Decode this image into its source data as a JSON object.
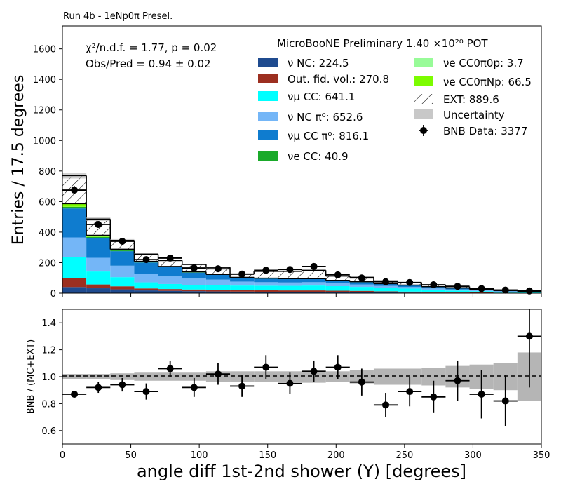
{
  "run_label": "Run 4b - 1eNp0π Presel.",
  "stats": {
    "chi2_label": "χ²/n.d.f. = 1.77, p = 0.02",
    "obs_pred_label": "Obs/Pred = 0.94 ± 0.02"
  },
  "experiment_label": "MicroBooNE Preliminary 1.40 ×10²⁰ POT",
  "chart_data": [
    {
      "type": "stacked-histogram",
      "ylabel": "Entries / 17.5 degrees",
      "xlim": [
        0,
        350
      ],
      "ylim": [
        0,
        1750
      ],
      "x_ticks": [
        "0",
        "50",
        "100",
        "150",
        "200",
        "250",
        "300",
        "350"
      ],
      "y_ticks": [
        "0",
        "200",
        "400",
        "600",
        "800",
        "1000",
        "1200",
        "1400",
        "1600"
      ],
      "y_tick_values": [
        0,
        200,
        400,
        600,
        800,
        1000,
        1200,
        1400,
        1600
      ],
      "bin_edges": [
        0,
        17.5,
        35,
        52.5,
        70,
        87.5,
        105,
        122.5,
        140,
        157.5,
        175,
        192.5,
        210,
        227.5,
        245,
        262.5,
        280,
        297.5,
        315,
        332.5,
        350
      ],
      "series": [
        {
          "name": "ν NC: 224.5",
          "color": "#1f4b8f",
          "values": [
            40,
            32,
            25,
            18,
            15,
            13,
            11,
            10,
            9,
            9,
            9,
            8,
            7,
            5,
            4,
            3,
            3,
            2,
            1,
            1
          ]
        },
        {
          "name": "Out. fid. vol.: 270.8",
          "color": "#9c2f20",
          "values": [
            60,
            25,
            20,
            13,
            12,
            11,
            11,
            10,
            10,
            9,
            9,
            8,
            8,
            7,
            6,
            5,
            4,
            3,
            2,
            1
          ]
        },
        {
          "name": "νμ CC: 641.1",
          "color": "#00ffff",
          "values": [
            135,
            85,
            60,
            40,
            33,
            30,
            30,
            30,
            30,
            30,
            32,
            30,
            26,
            23,
            20,
            14,
            10,
            8,
            6,
            4
          ]
        },
        {
          "name": "ν NC π⁰: 652.6",
          "color": "#74b6f7",
          "values": [
            130,
            90,
            75,
            55,
            50,
            42,
            37,
            26,
            23,
            22,
            22,
            18,
            16,
            13,
            10,
            9,
            7,
            5,
            3,
            2
          ]
        },
        {
          "name": "νμ CC π⁰: 816.1",
          "color": "#0f7ccf",
          "values": [
            190,
            130,
            95,
            75,
            60,
            39,
            31,
            24,
            23,
            22,
            20,
            17,
            15,
            12,
            11,
            10,
            8,
            6,
            4,
            3
          ]
        },
        {
          "name": "νe CC: 40.9",
          "color": "#1aaa2a",
          "values": [
            10,
            6,
            5,
            3,
            2,
            2,
            1,
            1,
            1,
            1,
            1,
            1,
            1,
            1,
            1,
            1,
            1,
            1,
            1,
            1
          ]
        },
        {
          "name": "νe CC0π0p: 3.7",
          "color": "#98fb98",
          "values": [
            1,
            1,
            0.5,
            0.3,
            0.2,
            0.1,
            0.1,
            0.1,
            0.1,
            0.1,
            0.1,
            0.1,
            0.1,
            0.1,
            0.1,
            0.1,
            0.1,
            0,
            0,
            0
          ]
        },
        {
          "name": "νe CC0πNp: 66.5",
          "color": "#7cfc00",
          "values": [
            20,
            10,
            7,
            4,
            3,
            3,
            2,
            2,
            2,
            2,
            2,
            2,
            2,
            1.5,
            1,
            1,
            1,
            1,
            0.5,
            0.5
          ]
        },
        {
          "name": "EXT: 889.6",
          "color": "hatch",
          "values": [
            184,
            106,
            58,
            47,
            39,
            48,
            46,
            21,
            45,
            48,
            55,
            28,
            29,
            18,
            17,
            11,
            9,
            7,
            4,
            3
          ]
        }
      ],
      "uncertainty_label": "Uncertainty",
      "data": {
        "name": "BNB Data: 3377",
        "x": [
          8.75,
          26.25,
          43.75,
          61.25,
          78.75,
          96.25,
          113.75,
          131.25,
          148.75,
          166.25,
          183.75,
          201.25,
          218.75,
          236.25,
          253.75,
          271.25,
          288.75,
          306.25,
          323.75,
          341.25
        ],
        "y": [
          675,
          450,
          340,
          220,
          230,
          165,
          160,
          125,
          150,
          155,
          175,
          120,
          100,
          75,
          70,
          55,
          45,
          30,
          20,
          15
        ]
      }
    },
    {
      "type": "ratio",
      "xlabel": "angle diff 1st-2nd shower (Y) [degrees]",
      "ylabel": "BNB / (MC+EXT)",
      "xlim": [
        0,
        350
      ],
      "ylim": [
        0.5,
        1.5
      ],
      "y_ticks": [
        "0.6",
        "0.8",
        "1.0",
        "1.2",
        "1.4"
      ],
      "y_tick_values": [
        0.6,
        0.8,
        1.0,
        1.2,
        1.4
      ],
      "band": [
        0.02,
        0.02,
        0.025,
        0.03,
        0.03,
        0.03,
        0.04,
        0.04,
        0.04,
        0.04,
        0.045,
        0.04,
        0.05,
        0.06,
        0.06,
        0.065,
        0.08,
        0.09,
        0.1,
        0.18
      ],
      "ratio": [
        0.87,
        0.92,
        0.94,
        0.89,
        1.06,
        0.92,
        1.02,
        0.93,
        1.07,
        0.95,
        1.04,
        1.07,
        0.96,
        0.79,
        0.89,
        0.85,
        0.97,
        0.87,
        0.82,
        1.3
      ],
      "err": [
        0.02,
        0.04,
        0.05,
        0.06,
        0.06,
        0.07,
        0.08,
        0.08,
        0.09,
        0.08,
        0.08,
        0.09,
        0.1,
        0.09,
        0.11,
        0.12,
        0.15,
        0.18,
        0.19,
        0.38
      ]
    }
  ]
}
